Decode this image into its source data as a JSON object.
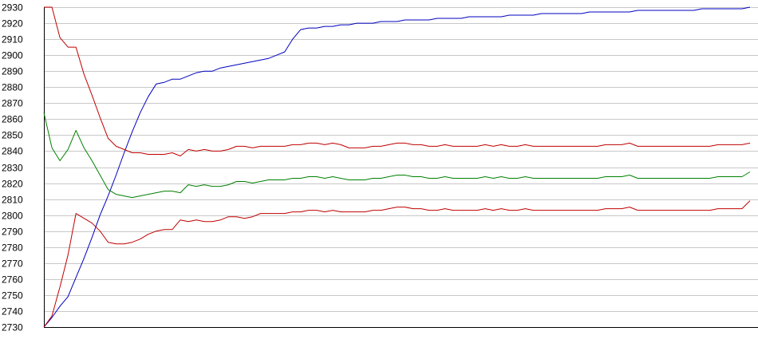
{
  "chart_data": {
    "type": "line",
    "title": "",
    "xlabel": "",
    "ylabel": "",
    "ylim": [
      2730,
      2930
    ],
    "yticks": [
      2730,
      2740,
      2750,
      2760,
      2770,
      2780,
      2790,
      2800,
      2810,
      2820,
      2830,
      2840,
      2850,
      2860,
      2870,
      2880,
      2890,
      2900,
      2910,
      2920,
      2930
    ],
    "grid": true,
    "legend": "none",
    "x": [
      0,
      1,
      2,
      3,
      4,
      5,
      6,
      7,
      8,
      9,
      10,
      11,
      12,
      13,
      14,
      15,
      16,
      17,
      18,
      19,
      20,
      21,
      22,
      23,
      24,
      25,
      26,
      27,
      28,
      29,
      30,
      31,
      32,
      33,
      34,
      35,
      36,
      37,
      38,
      39,
      40,
      41,
      42,
      43,
      44,
      45,
      46,
      47,
      48,
      49,
      50,
      51,
      52,
      53,
      54,
      55,
      56,
      57,
      58,
      59,
      60,
      61,
      62,
      63,
      64,
      65,
      66,
      67,
      68,
      69,
      70,
      71,
      72,
      73,
      74,
      75,
      76,
      77,
      78,
      79,
      80,
      81,
      82,
      83,
      84,
      85,
      86,
      87,
      88
    ],
    "xlim": [
      0,
      88
    ],
    "series": [
      {
        "color": "#0000c0",
        "values": [
          2730,
          2736,
          2743,
          2749,
          2761,
          2773,
          2786,
          2800,
          2812,
          2825,
          2839,
          2852,
          2864,
          2874,
          2882,
          2883,
          2885,
          2885,
          2887,
          2889,
          2890,
          2890,
          2892,
          2893,
          2894,
          2895,
          2896,
          2897,
          2898,
          2900,
          2902,
          2910,
          2916,
          2917,
          2917,
          2918,
          2918,
          2919,
          2919,
          2920,
          2920,
          2920,
          2921,
          2921,
          2921,
          2922,
          2922,
          2922,
          2922,
          2923,
          2923,
          2923,
          2923,
          2924,
          2924,
          2924,
          2924,
          2924,
          2925,
          2925,
          2925,
          2925,
          2926,
          2926,
          2926,
          2926,
          2926,
          2926,
          2927,
          2927,
          2927,
          2927,
          2927,
          2927,
          2928,
          2928,
          2928,
          2928,
          2928,
          2928,
          2928,
          2928,
          2929,
          2929,
          2929,
          2929,
          2929,
          2929,
          2930
        ]
      },
      {
        "color": "#c00000",
        "values": [
          2930,
          2930,
          2911,
          2905,
          2905,
          2888,
          2875,
          2861,
          2848,
          2843,
          2841,
          2839,
          2839,
          2838,
          2838,
          2838,
          2839,
          2837,
          2841,
          2840,
          2841,
          2840,
          2840,
          2841,
          2843,
          2843,
          2842,
          2843,
          2843,
          2843,
          2843,
          2844,
          2844,
          2845,
          2845,
          2844,
          2845,
          2844,
          2842,
          2842,
          2842,
          2843,
          2843,
          2844,
          2845,
          2845,
          2844,
          2844,
          2843,
          2843,
          2844,
          2843,
          2843,
          2843,
          2843,
          2844,
          2843,
          2844,
          2843,
          2843,
          2844,
          2843,
          2843,
          2843,
          2843,
          2843,
          2843,
          2843,
          2843,
          2843,
          2844,
          2844,
          2844,
          2845,
          2843,
          2843,
          2843,
          2843,
          2843,
          2843,
          2843,
          2843,
          2843,
          2843,
          2844,
          2844,
          2844,
          2844,
          2845
        ]
      },
      {
        "color": "#008000",
        "values": [
          2864,
          2842,
          2834,
          2841,
          2853,
          2842,
          2834,
          2825,
          2816,
          2813,
          2812,
          2811,
          2812,
          2813,
          2814,
          2815,
          2815,
          2814,
          2819,
          2818,
          2819,
          2818,
          2818,
          2819,
          2821,
          2821,
          2820,
          2821,
          2822,
          2822,
          2822,
          2823,
          2823,
          2824,
          2824,
          2823,
          2824,
          2823,
          2822,
          2822,
          2822,
          2823,
          2823,
          2824,
          2825,
          2825,
          2824,
          2824,
          2823,
          2823,
          2824,
          2823,
          2823,
          2823,
          2823,
          2824,
          2823,
          2824,
          2823,
          2823,
          2824,
          2823,
          2823,
          2823,
          2823,
          2823,
          2823,
          2823,
          2823,
          2823,
          2824,
          2824,
          2824,
          2825,
          2823,
          2823,
          2823,
          2823,
          2823,
          2823,
          2823,
          2823,
          2823,
          2823,
          2824,
          2824,
          2824,
          2824,
          2827
        ]
      },
      {
        "color": "#c00000",
        "values": [
          2730,
          2737,
          2755,
          2775,
          2801,
          2798,
          2795,
          2790,
          2783,
          2782,
          2782,
          2783,
          2785,
          2788,
          2790,
          2791,
          2791,
          2797,
          2796,
          2797,
          2796,
          2796,
          2797,
          2799,
          2799,
          2798,
          2799,
          2801,
          2801,
          2801,
          2801,
          2802,
          2802,
          2803,
          2803,
          2802,
          2803,
          2802,
          2802,
          2802,
          2802,
          2803,
          2803,
          2804,
          2805,
          2805,
          2804,
          2804,
          2803,
          2803,
          2804,
          2803,
          2803,
          2803,
          2803,
          2804,
          2803,
          2804,
          2803,
          2803,
          2804,
          2803,
          2803,
          2803,
          2803,
          2803,
          2803,
          2803,
          2803,
          2803,
          2804,
          2804,
          2804,
          2805,
          2803,
          2803,
          2803,
          2803,
          2803,
          2803,
          2803,
          2803,
          2803,
          2803,
          2804,
          2804,
          2804,
          2804,
          2809
        ]
      }
    ]
  }
}
